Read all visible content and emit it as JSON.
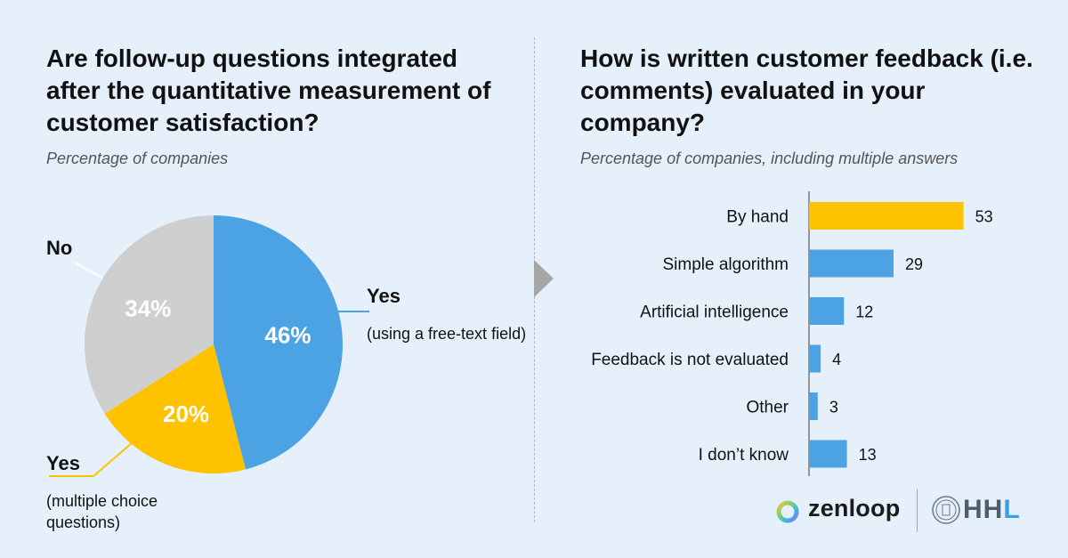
{
  "left": {
    "title": "Are follow-up questions integrated after the quantitative measurement of customer satisfaction?",
    "subtitle": "Percentage of companies",
    "callouts": {
      "no": "No",
      "yes_free_head": "Yes",
      "yes_free_text": "(using a free-text field)",
      "yes_mc_head": "Yes",
      "yes_mc_text": "(multiple choice questions)"
    }
  },
  "right": {
    "title": "How is written customer feedback (i.e. comments) evaluated in your company?",
    "subtitle": "Percentage of companies, including multiple answers"
  },
  "chart_data": [
    {
      "type": "pie",
      "title": "Are follow-up questions integrated after the quantitative measurement of customer satisfaction?",
      "subtitle": "Percentage of companies",
      "slices": [
        {
          "label": "Yes (using a free-text field)",
          "value": 46,
          "display": "46%",
          "color": "#4ba3e3"
        },
        {
          "label": "Yes (multiple choice questions)",
          "value": 20,
          "display": "20%",
          "color": "#fec200"
        },
        {
          "label": "No",
          "value": 34,
          "display": "34%",
          "color": "#cfcfcf"
        }
      ]
    },
    {
      "type": "bar",
      "orientation": "horizontal",
      "title": "How is written customer feedback (i.e. comments) evaluated in your company?",
      "subtitle": "Percentage of companies, including multiple answers",
      "categories": [
        "By hand",
        "Simple algorithm",
        "Artificial intelligence",
        "Feedback is not evaluated",
        "Other",
        "I don’t know"
      ],
      "values": [
        53,
        29,
        12,
        4,
        3,
        13
      ],
      "colors": [
        "#fec200",
        "#4ba3e3",
        "#4ba3e3",
        "#4ba3e3",
        "#4ba3e3",
        "#4ba3e3"
      ]
    }
  ],
  "logos": {
    "zenloop": "zenloop",
    "hhl": "HHL"
  },
  "colors": {
    "background": "#e6f0fb",
    "blue": "#4ba3e3",
    "yellow": "#fec200",
    "grey": "#cfcfcf"
  }
}
